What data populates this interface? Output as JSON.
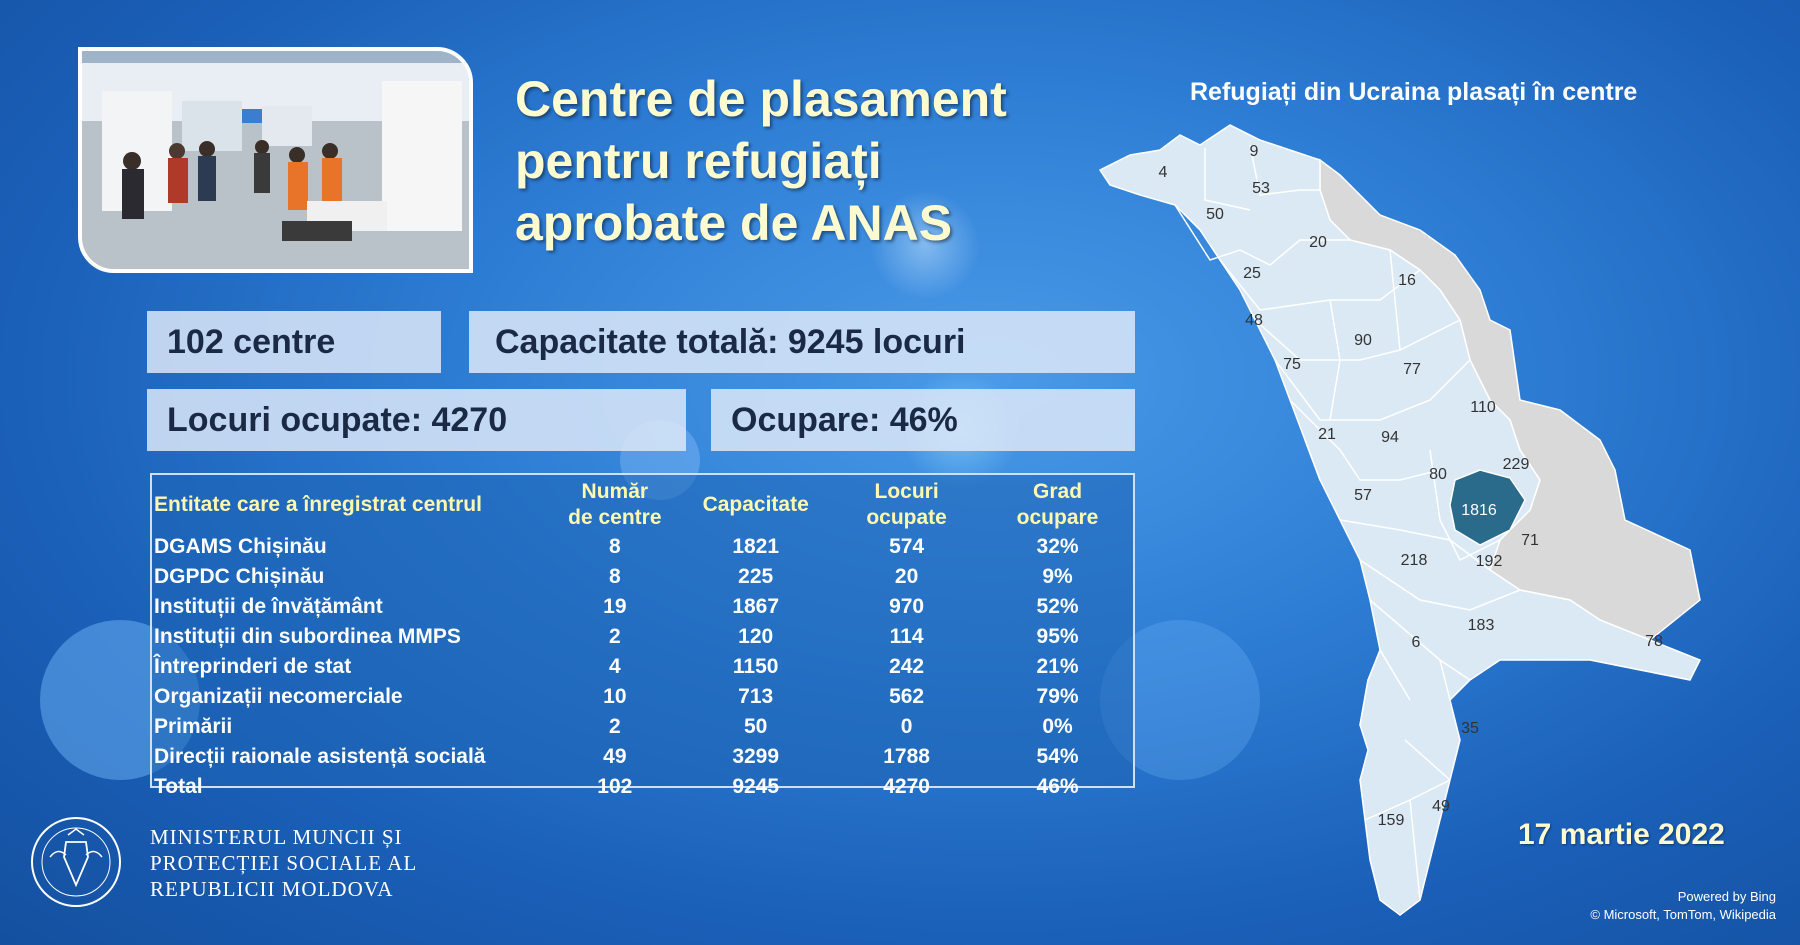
{
  "header": {
    "title_lines": [
      "Centre de plasament",
      "pentru refugiați",
      "aprobate de ANAS"
    ]
  },
  "stats": {
    "centers": "102 centre",
    "capacity": "Capacitate totală: 9245 locuri",
    "occupied": "Locuri ocupate: 4270",
    "occupancy": "Ocupare: 46%"
  },
  "table": {
    "headers": [
      "Entitate care a înregistrat centrul",
      "Număr\nde centre",
      "Capacitate",
      "Locuri\nocupate",
      "Grad\nocupare"
    ],
    "rows": [
      [
        "DGAMS Chișinău",
        "8",
        "1821",
        "574",
        "32%"
      ],
      [
        "DGPDC Chișinău",
        "8",
        "225",
        "20",
        "9%"
      ],
      [
        "Instituții de învățământ",
        "19",
        "1867",
        "970",
        "52%"
      ],
      [
        "Instituții din subordinea MMPS",
        "2",
        "120",
        "114",
        "95%"
      ],
      [
        "Întreprinderi de stat",
        "4",
        "1150",
        "242",
        "21%"
      ],
      [
        "Organizații necomerciale",
        "10",
        "713",
        "562",
        "79%"
      ],
      [
        "Primării",
        "2",
        "50",
        "0",
        "0%"
      ],
      [
        "Direcții raionale asistență socială",
        "49",
        "3299",
        "1788",
        "54%"
      ],
      [
        "Total",
        "102",
        "9245",
        "4270",
        "46%"
      ]
    ]
  },
  "ministry": {
    "lines": [
      "MINISTERUL MUNCII ȘI",
      "PROTECȚIEI SOCIALE AL",
      "REPUBLICII MOLDOVA"
    ]
  },
  "map": {
    "title": "Refugiați din Ucraina plasați în centre",
    "labels": [
      "4",
      "9",
      "53",
      "50",
      "20",
      "25",
      "16",
      "48",
      "90",
      "75",
      "77",
      "110",
      "21",
      "94",
      "229",
      "80",
      "57",
      "1816",
      "71",
      "218",
      "192",
      "183",
      "6",
      "78",
      "35",
      "159",
      "49"
    ],
    "highlight_color": "#2a6a8a",
    "region_color": "#dbe9f5",
    "other_color": "#d9d9d9"
  },
  "footer": {
    "date": "17 martie 2022",
    "powered": "Powered by Bing",
    "copyright": "© Microsoft, TomTom, Wikipedia"
  }
}
